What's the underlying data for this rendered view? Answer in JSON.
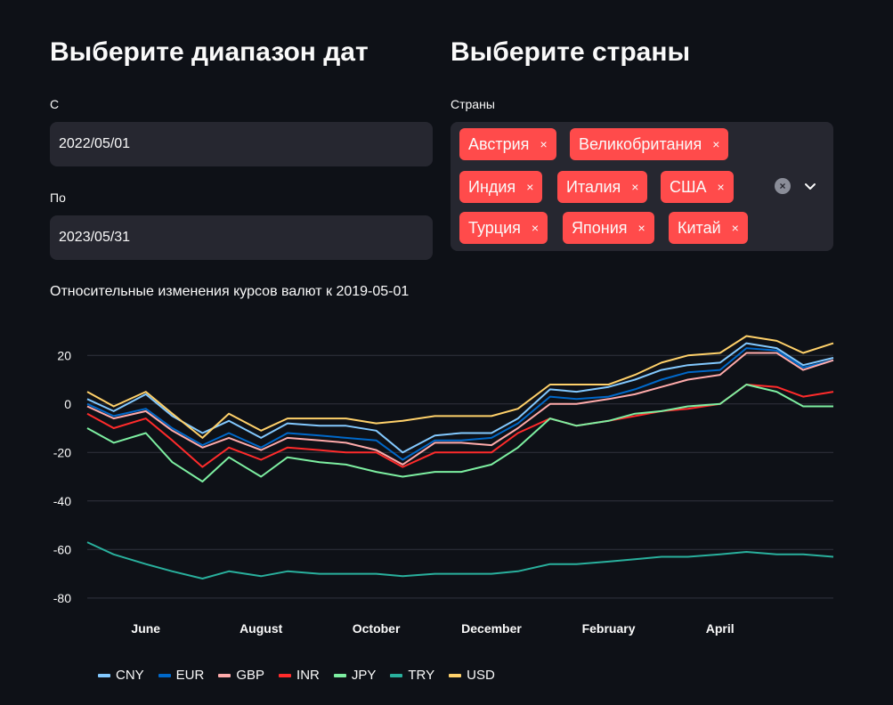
{
  "date_section": {
    "title": "Выберите диапазон дат",
    "from_label": "С",
    "from_value": "2022/05/01",
    "to_label": "По",
    "to_value": "2023/05/31"
  },
  "country_section": {
    "title": "Выберите страны",
    "label": "Страны",
    "tags": [
      "Австрия",
      "Великобритания",
      "Индия",
      "Италия",
      "США",
      "Турция",
      "Япония",
      "Китай"
    ],
    "remove_icon": "×",
    "clear_icon": "×"
  },
  "chart_title": "Относительные изменения курсов валют к 2019-05-01",
  "chart_data": {
    "type": "line",
    "x_ticks": [
      "June",
      "August",
      "October",
      "December",
      "February",
      "April"
    ],
    "y_ticks": [
      20,
      0,
      -20,
      -40,
      -60,
      -80
    ],
    "ylim": [
      -83,
      30
    ],
    "grid": true,
    "legend_position": "bottom-left",
    "x_points": [
      "2022-05-01",
      "2022-05-15",
      "2022-06-01",
      "2022-06-15",
      "2022-07-01",
      "2022-07-15",
      "2022-08-01",
      "2022-08-15",
      "2022-09-01",
      "2022-09-15",
      "2022-10-01",
      "2022-10-15",
      "2022-11-01",
      "2022-11-15",
      "2022-12-01",
      "2022-12-15",
      "2023-01-01",
      "2023-01-15",
      "2023-02-01",
      "2023-02-15",
      "2023-03-01",
      "2023-03-15",
      "2023-04-01",
      "2023-04-15",
      "2023-05-01",
      "2023-05-15",
      "2023-05-31"
    ],
    "series": [
      {
        "name": "CNY",
        "color": "#83c9ff",
        "values": [
          2,
          -3,
          4,
          -5,
          -12,
          -7,
          -14,
          -8,
          -9,
          -9,
          -11,
          -20,
          -13,
          -12,
          -12,
          -6,
          6,
          5,
          7,
          10,
          14,
          16,
          17,
          25,
          23,
          16,
          19
        ]
      },
      {
        "name": "EUR",
        "color": "#0068c9",
        "values": [
          0,
          -5,
          -2,
          -10,
          -17,
          -12,
          -18,
          -12,
          -13,
          -14,
          -15,
          -23,
          -15,
          -15,
          -14,
          -8,
          3,
          2,
          3,
          6,
          10,
          13,
          14,
          23,
          22,
          15,
          18
        ]
      },
      {
        "name": "GBP",
        "color": "#ffabab",
        "values": [
          -1,
          -6,
          -3,
          -11,
          -18,
          -14,
          -19,
          -14,
          -15,
          -16,
          -19,
          -25,
          -16,
          -16,
          -17,
          -10,
          0,
          0,
          2,
          4,
          7,
          10,
          12,
          21,
          21,
          14,
          18
        ]
      },
      {
        "name": "INR",
        "color": "#ff2b2b",
        "values": [
          -4,
          -10,
          -6,
          -15,
          -26,
          -18,
          -23,
          -18,
          -19,
          -20,
          -20,
          -26,
          -20,
          -20,
          -20,
          -12,
          -6,
          -9,
          -7,
          -5,
          -3,
          -2,
          0,
          8,
          7,
          3,
          5
        ]
      },
      {
        "name": "JPY",
        "color": "#7defa1",
        "values": [
          -10,
          -16,
          -12,
          -24,
          -32,
          -22,
          -30,
          -22,
          -24,
          -25,
          -28,
          -30,
          -28,
          -28,
          -25,
          -18,
          -6,
          -9,
          -7,
          -4,
          -3,
          -1,
          0,
          8,
          5,
          -1,
          -1
        ]
      },
      {
        "name": "TRY",
        "color": "#29b09d",
        "values": [
          -57,
          -62,
          -66,
          -69,
          -72,
          -69,
          -71,
          -69,
          -70,
          -70,
          -70,
          -71,
          -70,
          -70,
          -70,
          -69,
          -66,
          -66,
          -65,
          -64,
          -63,
          -63,
          -62,
          -61,
          -62,
          -62,
          -63
        ]
      },
      {
        "name": "USD",
        "color": "#ffd16a",
        "values": [
          5,
          -1,
          5,
          -4,
          -14,
          -4,
          -11,
          -6,
          -6,
          -6,
          -8,
          -7,
          -5,
          -5,
          -5,
          -2,
          8,
          8,
          8,
          12,
          17,
          20,
          21,
          28,
          26,
          21,
          25
        ]
      }
    ]
  },
  "colors": {
    "background": "#0e1117",
    "input_bg": "#262730",
    "tag_bg": "#ff4b4b",
    "grid": "#31333f"
  }
}
